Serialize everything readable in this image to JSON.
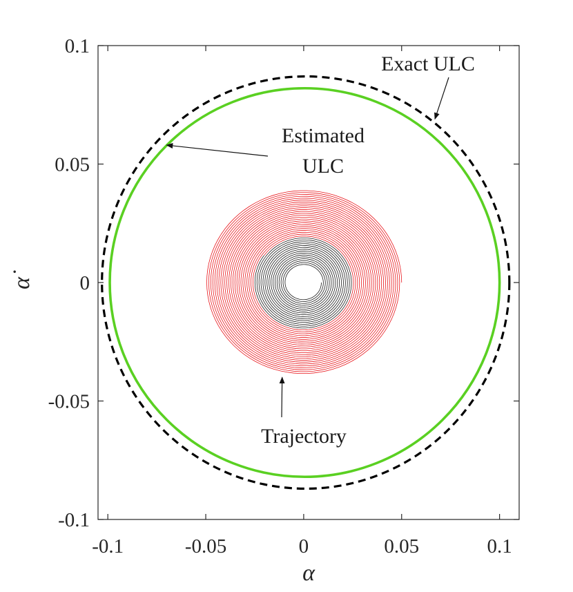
{
  "chart_data": {
    "type": "line",
    "title": "",
    "xlabel": "α",
    "ylabel": "α̇",
    "xlim": [
      -0.105,
      0.11
    ],
    "ylim": [
      -0.1,
      0.1
    ],
    "xticks": [
      -0.1,
      -0.05,
      0,
      0.05,
      0.1
    ],
    "xtick_labels": [
      "-0.1",
      "-0.05",
      "0",
      "0.05",
      "0.1"
    ],
    "yticks": [
      -0.1,
      -0.05,
      0,
      0.05,
      0.1
    ],
    "ytick_labels": [
      "-0.1",
      "-0.05",
      "0",
      "0.05",
      "0.1"
    ],
    "grid": false,
    "series": [
      {
        "key": "exact",
        "kind": "ellipse",
        "style": "dashed",
        "color": "#000000",
        "center": [
          0.001,
          0.0
        ],
        "radius_x": 0.104,
        "radius_y": 0.087
      },
      {
        "key": "estimated",
        "kind": "ellipse",
        "style": "solid",
        "color": "#5ad022",
        "center": [
          0.0005,
          0.0
        ],
        "radius_x": 0.0995,
        "radius_y": 0.082
      },
      {
        "key": "trajectory",
        "kind": "spiral",
        "color_outer": "#e8151b",
        "color_inner": "#1a1a1a",
        "start": [
          0.05,
          0.0
        ],
        "r_outer_alpha": 0.05,
        "r_inner_alpha": 0.009,
        "r_transition_alpha": 0.025,
        "aspect": 0.78,
        "turns": 40
      }
    ],
    "annotations": [
      {
        "key": "exact",
        "lines": [
          "Exact ULC"
        ],
        "arrow_tip": [
          0.067,
          0.069
        ]
      },
      {
        "key": "estimated",
        "lines": [
          "Estimated",
          "ULC"
        ],
        "arrow_tip": [
          -0.07,
          0.058
        ]
      },
      {
        "key": "trajectory",
        "lines": [
          "Trajectory"
        ],
        "arrow_tip": [
          -0.011,
          -0.04
        ]
      }
    ]
  }
}
